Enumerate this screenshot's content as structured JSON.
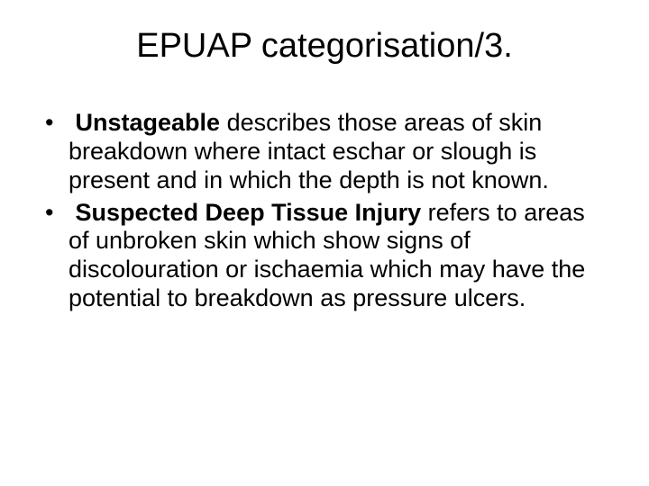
{
  "slide": {
    "title": "EPUAP categorisation/3.",
    "bullets": [
      {
        "bold_lead": "Unstageable",
        "rest": " describes those areas of skin breakdown where intact eschar or slough is present and in which the depth is not known."
      },
      {
        "bold_lead": "Suspected Deep Tissue Injury",
        "rest": " refers to areas of unbroken skin which show signs of discolouration or ischaemia which may have the potential to breakdown as pressure ulcers."
      }
    ]
  },
  "style": {
    "background_color": "#ffffff",
    "text_color": "#000000",
    "title_fontsize": 38,
    "body_fontsize": 27,
    "font_family": "Arial"
  }
}
